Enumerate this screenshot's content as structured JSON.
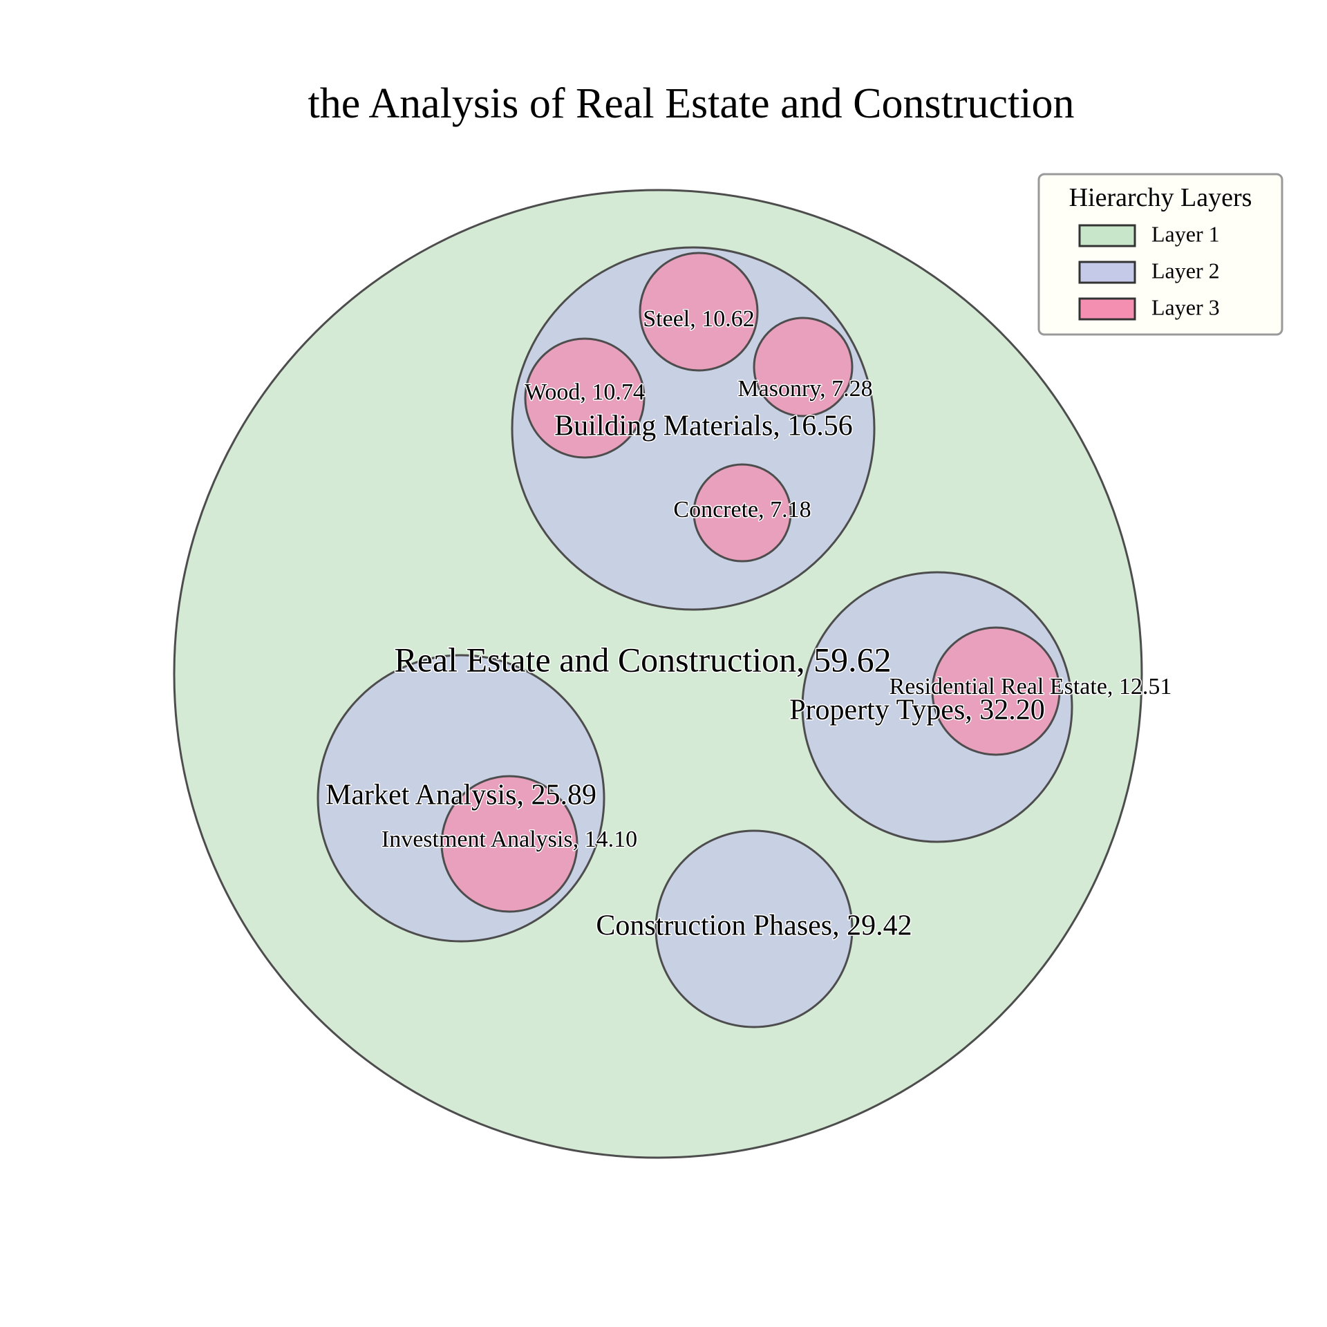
{
  "chart_data": {
    "type": "circle-packing",
    "title": "the Analysis of Real Estate and Construction",
    "colors": {
      "layer1": "#d4ead4",
      "layer2": "#c8d0e4",
      "layer3": "#e8a0bc",
      "outline": "#4d4d4d",
      "legend_bg": "#fffff8"
    },
    "legend": {
      "title": "Hierarchy Layers",
      "placement": "top-right",
      "items": [
        {
          "label": "Layer 1",
          "color": "#c8e6c9"
        },
        {
          "label": "Layer 2",
          "color": "#c5cae9"
        },
        {
          "label": "Layer 3",
          "color": "#f48fb1"
        }
      ]
    },
    "nodes": [
      {
        "id": "root",
        "label": "Real Estate and Construction, 59.62",
        "name": "Real Estate and Construction",
        "value": 59.62,
        "layer": 1,
        "parent": null
      },
      {
        "id": "bm",
        "label": "Building Materials, 16.56",
        "name": "Building Materials",
        "value": 16.56,
        "layer": 2,
        "parent": "root"
      },
      {
        "id": "pt",
        "label": "Property Types, 32.20",
        "name": "Property Types",
        "value": 32.2,
        "layer": 2,
        "parent": "root"
      },
      {
        "id": "ma",
        "label": "Market Analysis, 25.89",
        "name": "Market Analysis",
        "value": 25.89,
        "layer": 2,
        "parent": "root"
      },
      {
        "id": "cp",
        "label": "Construction Phases, 29.42",
        "name": "Construction Phases",
        "value": 29.42,
        "layer": 2,
        "parent": "root"
      },
      {
        "id": "steel",
        "label": "Steel, 10.62",
        "name": "Steel",
        "value": 10.62,
        "layer": 3,
        "parent": "bm"
      },
      {
        "id": "wood",
        "label": "Wood, 10.74",
        "name": "Wood",
        "value": 10.74,
        "layer": 3,
        "parent": "bm"
      },
      {
        "id": "masonry",
        "label": "Masonry, 7.28",
        "name": "Masonry",
        "value": 7.28,
        "layer": 3,
        "parent": "bm"
      },
      {
        "id": "concrete",
        "label": "Concrete, 7.18",
        "name": "Concrete",
        "value": 7.18,
        "layer": 3,
        "parent": "bm"
      },
      {
        "id": "rre",
        "label": "Residential Real Estate, 12.51",
        "name": "Residential Real Estate",
        "value": 12.51,
        "layer": 3,
        "parent": "pt"
      },
      {
        "id": "ia",
        "label": "Investment Analysis, 14.10",
        "name": "Investment Analysis",
        "value": 14.1,
        "layer": 3,
        "parent": "ma"
      }
    ]
  }
}
